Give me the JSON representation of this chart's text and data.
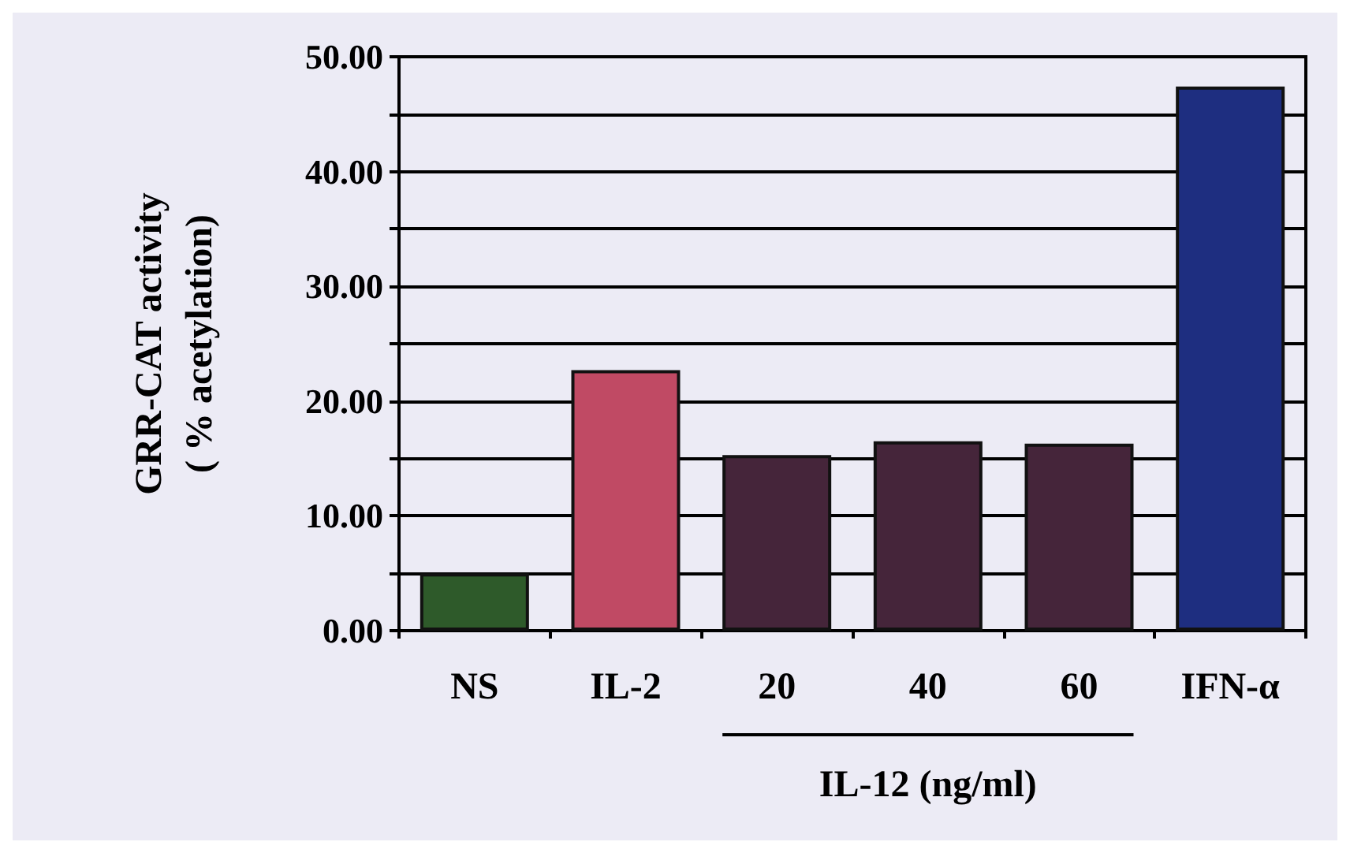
{
  "chart_data": {
    "type": "bar",
    "ylabel": "GRR-CAT activity\n( % acetylation)",
    "categories": [
      "NS",
      "IL-2",
      "20",
      "40",
      "60",
      "IFN-α"
    ],
    "values": [
      5.0,
      22.7,
      15.3,
      16.5,
      16.3,
      47.4
    ],
    "colors": [
      "#2e5a2a",
      "#c04a64",
      "#45253a",
      "#45253a",
      "#45253a",
      "#1e2e80"
    ],
    "ylim": [
      0,
      50
    ],
    "yticks": [
      {
        "value": 0,
        "label": "0.00"
      },
      {
        "value": 5,
        "label": null
      },
      {
        "value": 10,
        "label": "10.00"
      },
      {
        "value": 15,
        "label": null
      },
      {
        "value": 20,
        "label": "20.00"
      },
      {
        "value": 25,
        "label": null
      },
      {
        "value": 30,
        "label": "30.00"
      },
      {
        "value": 35,
        "label": null
      },
      {
        "value": 40,
        "label": "40.00"
      },
      {
        "value": 45,
        "label": null
      },
      {
        "value": 50,
        "label": "50.00"
      }
    ],
    "grid": "y",
    "annotations": [
      "IL-12 (ng/ml)"
    ]
  }
}
